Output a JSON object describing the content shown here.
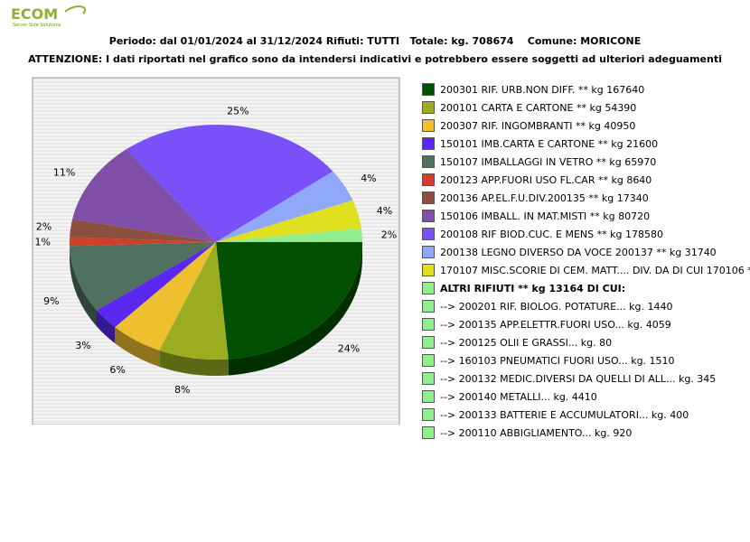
{
  "logo": {
    "text": "ECOM",
    "subtitle": "Server Side Solutions"
  },
  "header": {
    "line1": "Periodo: dal 01/01/2024 al 31/12/2024 Rifiuti: TUTTI   Totale: kg. 708674    Comune: MORICONE",
    "line2": "ATTENZIONE: I dati riportati nel grafico sono da intendersi indicativi e potrebbero essere soggetti ad ulteriori adeguamenti"
  },
  "colors": {
    "plot_bg": "#e8e8e8",
    "grid": "#ffffff",
    "sub_items": "#90ee90"
  },
  "chart_data": {
    "type": "pie",
    "start_angle_deg": 0,
    "direction": "clockwise",
    "slices": [
      {
        "label": "200301 RIF. URB.NON DIFF. ** kg 167640",
        "value": 167640,
        "pct_label": "24%",
        "color": "#005000"
      },
      {
        "label": "200101 CARTA E CARTONE ** kg 54390",
        "value": 54390,
        "pct_label": "8%",
        "color": "#9aad20"
      },
      {
        "label": "200307 RIF. INGOMBRANTI ** kg 40950",
        "value": 40950,
        "pct_label": "6%",
        "color": "#eec030"
      },
      {
        "label": "150101 IMB.CARTA E CARTONE ** kg 21600",
        "value": 21600,
        "pct_label": "3%",
        "color": "#5a28f0"
      },
      {
        "label": "150107 IMBALLAGGI IN VETRO ** kg 65970",
        "value": 65970,
        "pct_label": "9%",
        "color": "#507060"
      },
      {
        "label": "200123 APP.FUORI USO FL.CAR ** kg 8640",
        "value": 8640,
        "pct_label": "1%",
        "color": "#d04028"
      },
      {
        "label": "200136 AP.EL.F.U.DIV.200135 ** kg 17340",
        "value": 17340,
        "pct_label": "2%",
        "color": "#8b5040"
      },
      {
        "label": "150106 IMBALL. IN MAT.MISTI ** kg 80720",
        "value": 80720,
        "pct_label": "11%",
        "color": "#8050a8"
      },
      {
        "label": "200108 RIF BIOD.CUC. E MENS ** kg 178580",
        "value": 178580,
        "pct_label": "25%",
        "color": "#7a50f8"
      },
      {
        "label": "200138 LEGNO DIVERSO DA VOCE 200137 ** kg 31740",
        "value": 31740,
        "pct_label": "4%",
        "color": "#90a8f8"
      },
      {
        "label": "170107 MISC.SCORIE DI CEM. MATT.... DIV. DA DI CUI 170106 ** kg 27940",
        "value": 27940,
        "pct_label": "4%",
        "color": "#e0e020"
      },
      {
        "label": "ALTRI RIFIUTI ** kg 13164 DI CUI:",
        "value": 13164,
        "pct_label": "2%",
        "color": "#90ee90"
      }
    ],
    "sub_items": [
      "-->  200201 RIF. BIOLOG. POTATURE... kg. 1440",
      "-->  200135 APP.ELETTR.FUORI USO... kg. 4059",
      "-->  200125 OLII E GRASSI... kg. 80",
      "-->  160103 PNEUMATICI FUORI USO... kg. 1510",
      "-->  200132 MEDIC.DIVERSI DA QUELLI DI ALL... kg. 345",
      "-->  200140 METALLI... kg. 4410",
      "-->  200133 BATTERIE E ACCUMULATORI... kg. 400",
      "-->  200110 ABBIGLIAMENTO... kg. 920"
    ]
  }
}
